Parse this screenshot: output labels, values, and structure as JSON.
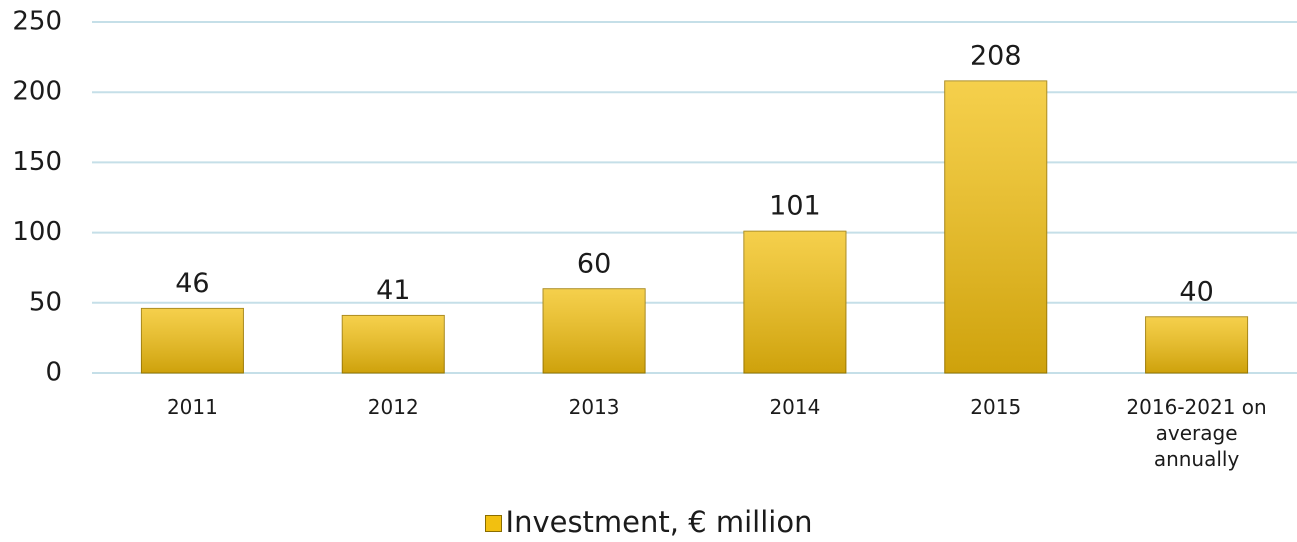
{
  "chart_data": {
    "type": "bar",
    "categories": [
      "2011",
      "2012",
      "2013",
      "2014",
      "2015",
      "2016-2021 on average annually"
    ],
    "series": [
      {
        "name": "Investment, € million",
        "color": "#f2c010",
        "values": [
          46,
          41,
          60,
          101,
          208,
          40
        ]
      }
    ],
    "ylim": [
      0,
      250
    ],
    "yticks": [
      0,
      50,
      100,
      150,
      200,
      250
    ],
    "grid": true,
    "legend": "bottom"
  }
}
